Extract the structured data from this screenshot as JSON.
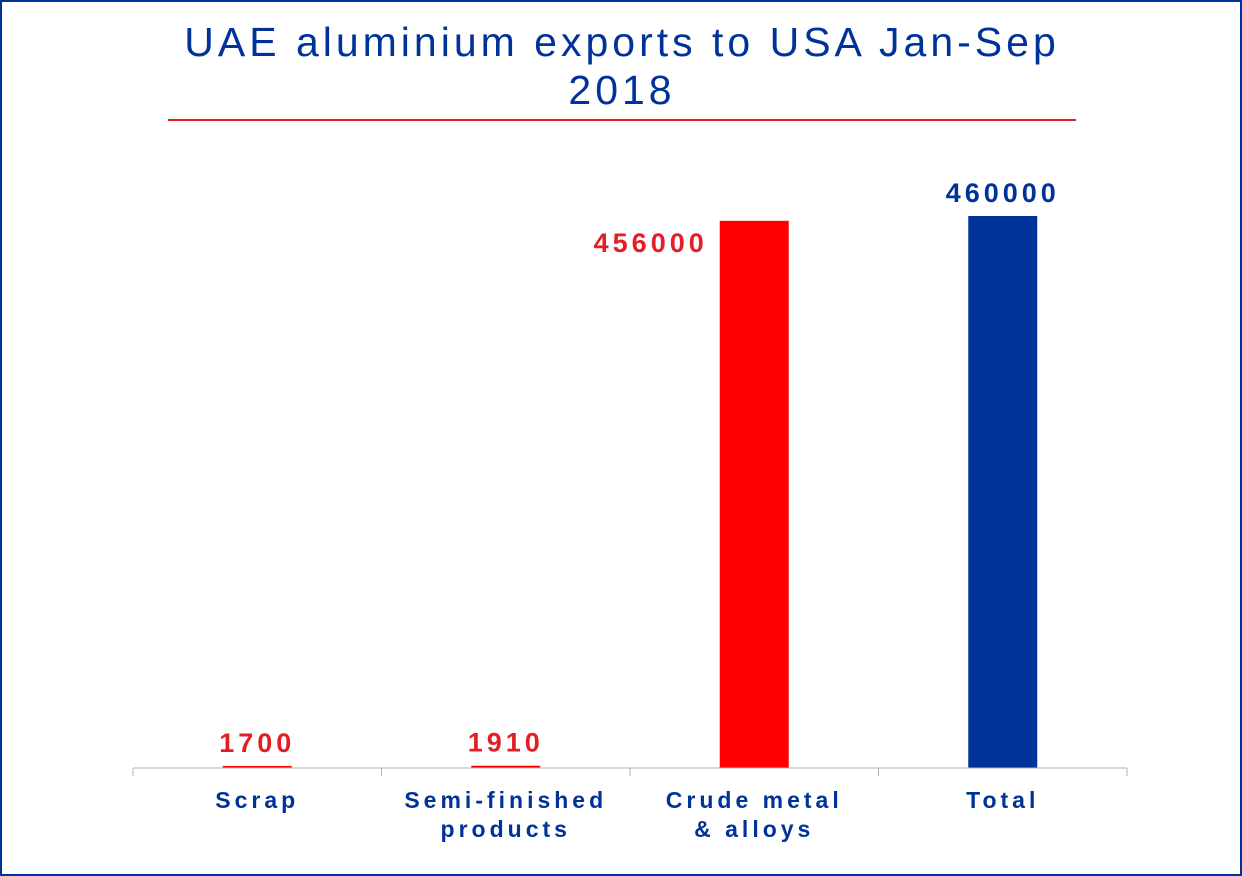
{
  "chart_data": {
    "type": "bar",
    "title": "UAE aluminium exports to USA Jan-Sep 2018",
    "title_lines": [
      "UAE aluminium exports to USA Jan-Sep",
      "2018"
    ],
    "categories": [
      "Scrap",
      "Semi-finished products",
      "Crude metal & alloys",
      "Total"
    ],
    "category_lines": [
      [
        "Scrap"
      ],
      [
        "Semi-finished",
        "products"
      ],
      [
        "Crude metal",
        "& alloys"
      ],
      [
        "Total"
      ]
    ],
    "values": [
      1700,
      1910,
      456000,
      460000
    ],
    "data_labels": [
      "1700",
      "1910",
      "456000",
      "460000"
    ],
    "bar_colors": [
      "#ff0000",
      "#ff0000",
      "#ff0000",
      "#003399"
    ],
    "label_colors": [
      "#e31e24",
      "#e31e24",
      "#e31e24",
      "#003399"
    ],
    "xlabel": "",
    "ylabel": "",
    "ylim": [
      0,
      460000
    ],
    "grid": false,
    "legend": "none"
  },
  "colors": {
    "frame": "#003399",
    "title": "#003399",
    "title_rule": "#e31e24",
    "axis": "#b0b0b0"
  }
}
